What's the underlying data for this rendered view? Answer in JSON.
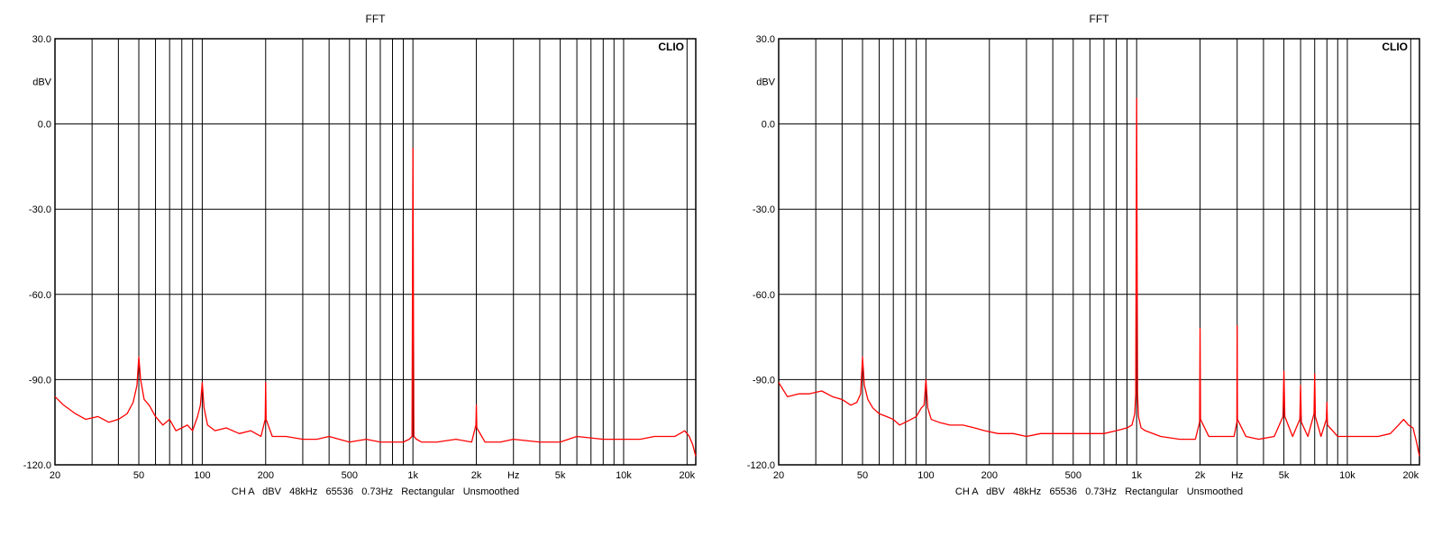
{
  "chart_data": [
    {
      "type": "line",
      "title": "FFT",
      "brand": "CLIO",
      "ylabel": "dBV",
      "xlabel": "Hz",
      "xscale": "log",
      "xlim": [
        20,
        22000
      ],
      "ylim": [
        -120,
        30
      ],
      "grid": true,
      "line_color": "#ff0000",
      "y_ticks": [
        {
          "value": 30,
          "label": "30.0"
        },
        {
          "value": 0,
          "label": "0.0"
        },
        {
          "value": -30,
          "label": "-30.0"
        },
        {
          "value": -60,
          "label": "-60.0"
        },
        {
          "value": -90,
          "label": "-90.0"
        },
        {
          "value": -120,
          "label": "-120.0"
        }
      ],
      "x_ticks": [
        {
          "value": 20,
          "label": "20"
        },
        {
          "value": 50,
          "label": "50"
        },
        {
          "value": 100,
          "label": "100"
        },
        {
          "value": 200,
          "label": "200"
        },
        {
          "value": 500,
          "label": "500"
        },
        {
          "value": 1000,
          "label": "1k"
        },
        {
          "value": 2000,
          "label": "2k"
        },
        {
          "value": 5000,
          "label": "5k"
        },
        {
          "value": 10000,
          "label": "10k"
        },
        {
          "value": 20000,
          "label": "20k"
        }
      ],
      "footer": "CH A   dBV   48kHz   65536   0.73Hz   Rectangular   Unsmoothed",
      "series": [
        {
          "x": [
            20,
            22,
            25,
            28,
            32,
            36,
            40,
            44,
            47,
            49,
            50,
            51,
            53,
            56,
            60,
            65,
            70,
            75,
            80,
            85,
            90,
            95,
            98,
            100,
            102,
            106,
            115,
            130,
            150,
            170,
            190,
            199,
            200,
            201,
            215,
            250,
            300,
            350,
            400,
            500,
            600,
            700,
            800,
            900,
            960,
            990,
            1000,
            1010,
            1040,
            1100,
            1300,
            1600,
            1900,
            1990,
            2000,
            2010,
            2200,
            2600,
            3000,
            4000,
            5000,
            6000,
            8000,
            10000,
            12000,
            14000,
            16000,
            17500,
            18500,
            19500,
            20500,
            21300,
            22000
          ],
          "y": [
            -96,
            -99,
            -102,
            -104,
            -103,
            -105,
            -104,
            -102,
            -98,
            -92,
            -82,
            -90,
            -97,
            -99,
            -103,
            -106,
            -104,
            -108,
            -107,
            -106,
            -108,
            -103,
            -99,
            -91,
            -100,
            -106,
            -108,
            -107,
            -109,
            -108,
            -110,
            -104,
            -91,
            -104,
            -110,
            -110,
            -111,
            -111,
            -110,
            -112,
            -111,
            -112,
            -112,
            -112,
            -111,
            -110,
            -8.5,
            -110,
            -111,
            -112,
            -112,
            -111,
            -112,
            -106,
            -99,
            -107,
            -112,
            -112,
            -111,
            -112,
            -112,
            -110,
            -111,
            -111,
            -111,
            -110,
            -110,
            -110,
            -109,
            -108,
            -110,
            -113,
            -117
          ]
        }
      ]
    },
    {
      "type": "line",
      "title": "FFT",
      "brand": "CLIO",
      "ylabel": "dBV",
      "xlabel": "Hz",
      "xscale": "log",
      "xlim": [
        20,
        22000
      ],
      "ylim": [
        -120,
        30
      ],
      "grid": true,
      "line_color": "#ff0000",
      "y_ticks": [
        {
          "value": 30,
          "label": "30.0"
        },
        {
          "value": 0,
          "label": "0.0"
        },
        {
          "value": -30,
          "label": "-30.0"
        },
        {
          "value": -60,
          "label": "-60.0"
        },
        {
          "value": -90,
          "label": "-90.0"
        },
        {
          "value": -120,
          "label": "-120.0"
        }
      ],
      "x_ticks": [
        {
          "value": 20,
          "label": "20"
        },
        {
          "value": 50,
          "label": "50"
        },
        {
          "value": 100,
          "label": "100"
        },
        {
          "value": 200,
          "label": "200"
        },
        {
          "value": 500,
          "label": "500"
        },
        {
          "value": 1000,
          "label": "1k"
        },
        {
          "value": 2000,
          "label": "2k"
        },
        {
          "value": 5000,
          "label": "5k"
        },
        {
          "value": 10000,
          "label": "10k"
        },
        {
          "value": 20000,
          "label": "20k"
        }
      ],
      "footer": "CH A   dBV   48kHz   65536   0.73Hz   Rectangular   Unsmoothed",
      "series": [
        {
          "x": [
            20,
            22,
            25,
            28,
            32,
            36,
            40,
            44,
            47,
            49,
            50,
            51,
            53,
            56,
            60,
            65,
            70,
            75,
            80,
            85,
            90,
            95,
            98,
            100,
            102,
            106,
            115,
            130,
            150,
            170,
            190,
            220,
            260,
            300,
            350,
            400,
            500,
            600,
            700,
            800,
            900,
            950,
            980,
            990,
            1000,
            1010,
            1020,
            1050,
            1100,
            1300,
            1600,
            1900,
            1990,
            2000,
            2010,
            2200,
            2600,
            2900,
            2990,
            3000,
            3010,
            3300,
            3800,
            4500,
            4950,
            5000,
            5050,
            5500,
            5950,
            6000,
            6050,
            6500,
            6950,
            7000,
            7050,
            7500,
            7950,
            8000,
            8050,
            9000,
            10000,
            12000,
            14000,
            16000,
            17500,
            18500,
            19500,
            20500,
            21300,
            22000
          ],
          "y": [
            -91,
            -96,
            -95,
            -95,
            -94,
            -96,
            -97,
            -99,
            -98,
            -95,
            -82,
            -92,
            -97,
            -100,
            -102,
            -103,
            -104,
            -106,
            -105,
            -104,
            -103,
            -100,
            -99,
            -90,
            -100,
            -104,
            -105,
            -106,
            -106,
            -107,
            -108,
            -109,
            -109,
            -110,
            -109,
            -109,
            -109,
            -109,
            -109,
            -108,
            -107,
            -106,
            -102,
            -95,
            9,
            -95,
            -103,
            -107,
            -108,
            -110,
            -111,
            -111,
            -105,
            -72,
            -104,
            -110,
            -110,
            -110,
            -105,
            -71,
            -104,
            -110,
            -111,
            -110,
            -103,
            -87,
            -103,
            -110,
            -104,
            -92,
            -105,
            -110,
            -102,
            -88,
            -103,
            -110,
            -104,
            -98,
            -106,
            -110,
            -110,
            -110,
            -110,
            -109,
            -106,
            -104,
            -106,
            -107,
            -112,
            -117
          ]
        }
      ]
    }
  ]
}
